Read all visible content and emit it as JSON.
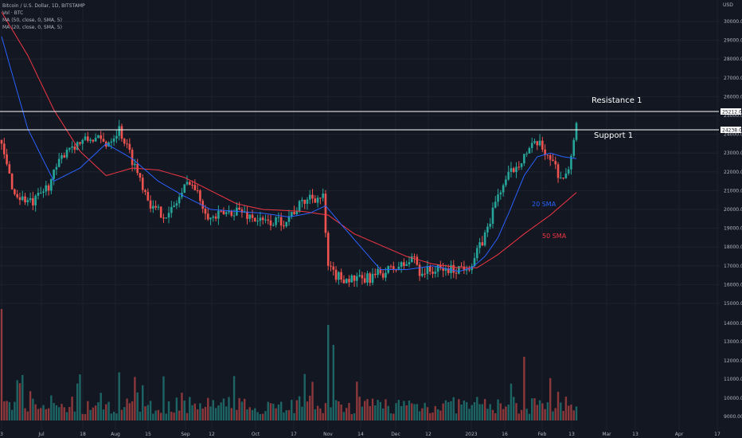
{
  "legend": {
    "title": "Bitcoin / U.S. Dollar, 1D, BITSTAMP",
    "vol": "Vol · BTC",
    "ma1": "MA (50, close, 0, SMA, 5)",
    "ma2": "MA (20, close, 0, SMA, 5)"
  },
  "annotations": {
    "resistance": "Resistance 1",
    "support": "Support 1",
    "sma20": "20 SMA",
    "sma50": "50 SMA"
  },
  "price_tags": {
    "resistance": "25212.00",
    "support": "24238.00"
  },
  "colors": {
    "up": "#26a69a",
    "down": "#ef5350",
    "sma20": "#2962ff",
    "sma50": "#f23645",
    "hline": "#ffffff",
    "bg": "#131722"
  },
  "chart_data": {
    "type": "candlestick",
    "unit": "USD",
    "ylim": [
      14700,
      30700
    ],
    "y_ticks": [
      15000,
      16000,
      17000,
      18000,
      19000,
      20000,
      21000,
      22000,
      23000,
      24000,
      25000,
      26000,
      27000,
      28000,
      29000,
      30000
    ],
    "x_ticks": [
      "3",
      "Jul",
      "18",
      "Aug",
      "15",
      "Sep",
      "12",
      "Oct",
      "17",
      "Nov",
      "14",
      "Dec",
      "12",
      "2023",
      "16",
      "Feb",
      "13",
      "Mar",
      "13",
      "Apr",
      "17"
    ],
    "volume_ticks": [
      9000,
      10000,
      11000,
      12000,
      13000,
      14000
    ],
    "resistance": 25212.0,
    "support": 24238.0,
    "close_anchors": [
      [
        0,
        23300
      ],
      [
        5,
        20800
      ],
      [
        12,
        20300
      ],
      [
        18,
        21300
      ],
      [
        25,
        23300
      ],
      [
        35,
        23800
      ],
      [
        40,
        23500
      ],
      [
        45,
        24300
      ],
      [
        52,
        22000
      ],
      [
        58,
        20000
      ],
      [
        64,
        19700
      ],
      [
        72,
        21600
      ],
      [
        80,
        19500
      ],
      [
        90,
        20000
      ],
      [
        100,
        19300
      ],
      [
        108,
        19400
      ],
      [
        118,
        20700
      ],
      [
        123,
        20600
      ],
      [
        125,
        16800
      ],
      [
        129,
        16400
      ],
      [
        138,
        16200
      ],
      [
        145,
        16600
      ],
      [
        155,
        17100
      ],
      [
        158,
        17500
      ],
      [
        160,
        16700
      ],
      [
        170,
        16800
      ],
      [
        173,
        16800
      ],
      [
        180,
        17100
      ],
      [
        185,
        18600
      ],
      [
        190,
        20800
      ],
      [
        195,
        22000
      ],
      [
        200,
        22900
      ],
      [
        205,
        23500
      ],
      [
        210,
        22800
      ],
      [
        214,
        21700
      ],
      [
        217,
        21900
      ],
      [
        220,
        24800
      ]
    ],
    "sma20_anchors": [
      [
        0,
        29200
      ],
      [
        10,
        24300
      ],
      [
        20,
        21500
      ],
      [
        30,
        22200
      ],
      [
        40,
        23500
      ],
      [
        50,
        22700
      ],
      [
        60,
        21500
      ],
      [
        70,
        20700
      ],
      [
        80,
        20000
      ],
      [
        90,
        19900
      ],
      [
        100,
        19800
      ],
      [
        110,
        19600
      ],
      [
        118,
        19800
      ],
      [
        124,
        20200
      ],
      [
        130,
        19200
      ],
      [
        140,
        17600
      ],
      [
        145,
        16800
      ],
      [
        155,
        16800
      ],
      [
        165,
        17000
      ],
      [
        175,
        16700
      ],
      [
        180,
        16900
      ],
      [
        185,
        17500
      ],
      [
        190,
        18500
      ],
      [
        195,
        20100
      ],
      [
        200,
        21800
      ],
      [
        205,
        22800
      ],
      [
        210,
        23000
      ],
      [
        215,
        22800
      ],
      [
        220,
        22700
      ]
    ],
    "sma50_anchors": [
      [
        0,
        30500
      ],
      [
        10,
        28200
      ],
      [
        20,
        25300
      ],
      [
        30,
        23100
      ],
      [
        40,
        21800
      ],
      [
        50,
        22200
      ],
      [
        60,
        22100
      ],
      [
        70,
        21700
      ],
      [
        80,
        21000
      ],
      [
        90,
        20300
      ],
      [
        100,
        20000
      ],
      [
        115,
        19900
      ],
      [
        125,
        19700
      ],
      [
        135,
        18700
      ],
      [
        145,
        18100
      ],
      [
        155,
        17500
      ],
      [
        165,
        17100
      ],
      [
        175,
        16900
      ],
      [
        182,
        16900
      ],
      [
        190,
        17600
      ],
      [
        200,
        18700
      ],
      [
        210,
        19700
      ],
      [
        220,
        20900
      ]
    ]
  }
}
